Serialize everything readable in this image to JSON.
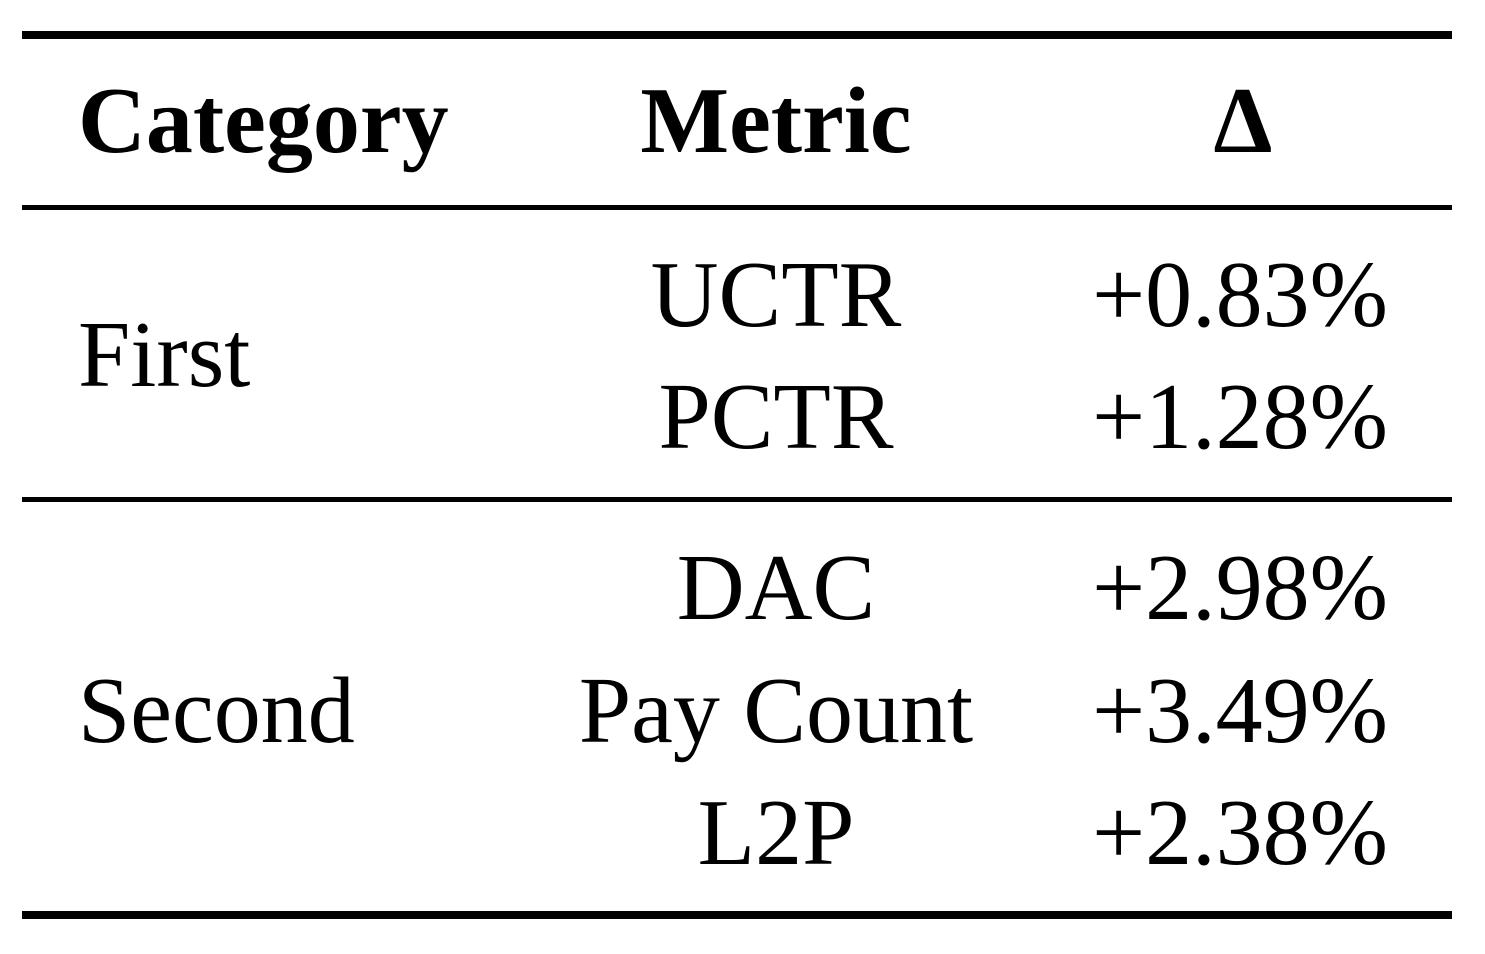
{
  "table": {
    "headers": {
      "category": "Category",
      "metric": "Metric",
      "delta": "Δ"
    },
    "groups": [
      {
        "category": "First",
        "rows": [
          {
            "metric": "UCTR",
            "delta": "+0.83%"
          },
          {
            "metric": "PCTR",
            "delta": "+1.28%"
          }
        ]
      },
      {
        "category": "Second",
        "rows": [
          {
            "metric": "DAC",
            "delta": "+2.98%"
          },
          {
            "metric": "Pay Count",
            "delta": "+3.49%"
          },
          {
            "metric": "L2P",
            "delta": "+2.38%"
          }
        ]
      }
    ]
  }
}
